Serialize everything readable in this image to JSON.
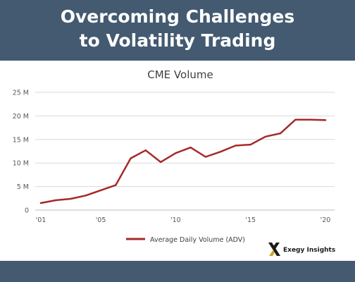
{
  "header": {
    "title_line1": "Overcoming Challenges",
    "title_line2": "to Volatility Trading"
  },
  "brand": {
    "name": "Exegy Insights",
    "logo_icon": "exegy-x-logo"
  },
  "colors": {
    "header_bg": "#435a70",
    "line": "#a52a2a",
    "grid": "#d9d9d9",
    "axis": "#595959"
  },
  "chart_data": {
    "type": "line",
    "title": "CME Volume",
    "xlabel": "",
    "ylabel": "",
    "x_tick_labels": [
      "'01",
      "'05",
      "'10",
      "'15",
      "'20"
    ],
    "x_tick_values": [
      2001,
      2005,
      2010,
      2015,
      2020
    ],
    "y_tick_labels": [
      "0",
      "5 M",
      "10 M",
      "15 M",
      "20 M",
      "25 M"
    ],
    "y_tick_values": [
      0,
      5,
      10,
      15,
      20,
      25
    ],
    "ylim": [
      0,
      25
    ],
    "xlim": [
      2001,
      2020
    ],
    "grid": true,
    "legend_position": "bottom",
    "series": [
      {
        "name": "Average Daily Volume (ADV)",
        "x": [
          2001,
          2002,
          2003,
          2004,
          2005,
          2006,
          2007,
          2008,
          2009,
          2010,
          2011,
          2012,
          2013,
          2014,
          2015,
          2016,
          2017,
          2018,
          2019,
          2020
        ],
        "values": [
          1.5,
          2.1,
          2.4,
          3.1,
          4.2,
          5.3,
          11.0,
          12.7,
          10.2,
          12.1,
          13.3,
          11.3,
          12.4,
          13.7,
          13.9,
          15.6,
          16.3,
          19.2,
          19.2,
          19.1
        ]
      }
    ]
  }
}
